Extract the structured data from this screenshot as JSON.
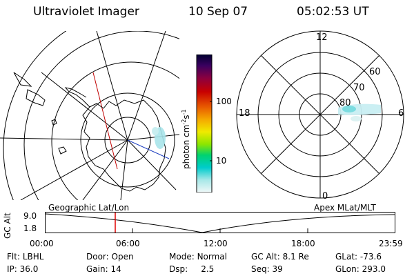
{
  "header": {
    "instrument": "Ultraviolet Imager",
    "date": "10 Sep 07",
    "time": "05:02:53 UT"
  },
  "colorbar": {
    "unit_label": "photon cm-2s-1",
    "unit_main": "photon cm",
    "unit_exp1": "-2",
    "unit_mid": "s",
    "unit_exp2": "-1",
    "ticks": [
      "100",
      "10"
    ],
    "colors": [
      "#000040",
      "#4b0060",
      "#8c003c",
      "#c80000",
      "#e64b00",
      "#f5a000",
      "#f0e600",
      "#78e600",
      "#00d264",
      "#00c8c8",
      "#a0e6e6",
      "#e6f5f5"
    ]
  },
  "geo_map": {
    "label": "Geographic Lat/Lon"
  },
  "polar_plot": {
    "label": "Apex MLat/MLT",
    "mlt_labels": {
      "top": "12",
      "left": "18",
      "right": "6",
      "bottom": "0"
    },
    "lat_labels": [
      "60",
      "70",
      "80"
    ]
  },
  "timeline": {
    "ylabel": "GC Alt",
    "y_ticks": [
      "9.0",
      "1.8"
    ],
    "x_ticks": [
      "00:00",
      "06:00",
      "12:00",
      "18:00",
      "23:59"
    ],
    "marker_time": "05:02:53",
    "marker_color": "#e00000"
  },
  "info": {
    "flt_label": "Flt:",
    "flt_value": "LBHL",
    "ip_label": "IP:",
    "ip_value": "36.0",
    "door_label": "Door:",
    "door_value": "Open",
    "gain_label": "Gain:",
    "gain_value": "14",
    "mode_label": "Mode:",
    "mode_value": "Normal",
    "dsp_label": "Dsp:",
    "dsp_value": "2.5",
    "gcalt_label": "GC Alt:",
    "gcalt_value": "8.1 Re",
    "seq_label": "Seq:",
    "seq_value": "39",
    "glat_label": "GLat:",
    "glat_value": "-73.6",
    "glon_label": "GLon:",
    "glon_value": "293.0"
  }
}
